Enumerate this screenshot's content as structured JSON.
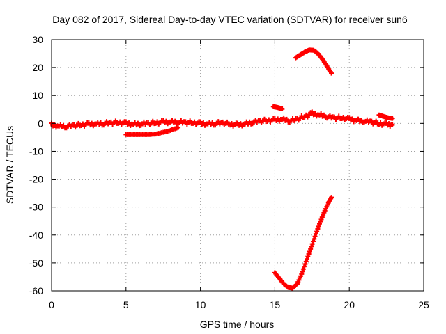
{
  "chart_data": {
    "type": "scatter",
    "title": "Day 082 of 2017, Sidereal Day-to-day VTEC variation (SDTVAR) for receiver sun6",
    "xlabel": "GPS time / hours",
    "ylabel": "SDTVAR / TECUs",
    "xlim": [
      0,
      25
    ],
    "ylim": [
      -60,
      30
    ],
    "xticks": [
      0,
      5,
      10,
      15,
      20,
      25
    ],
    "yticks": [
      30,
      20,
      10,
      0,
      -10,
      -20,
      -30,
      -40,
      -50,
      -60
    ],
    "grid": true,
    "legend": "none",
    "marker": "plus",
    "color": "#ff0000",
    "series": [
      {
        "x": [
          0.0,
          0.5,
          1.0,
          1.5,
          2.0,
          2.5,
          3.0,
          3.5,
          4.0,
          4.5,
          5.0,
          5.5,
          6.0,
          6.5,
          7.0,
          7.5,
          8.0,
          8.5,
          9.0,
          9.5,
          10.0,
          10.5,
          11.0,
          11.5,
          12.0,
          12.5,
          13.0,
          13.5,
          14.0,
          14.5,
          15.0,
          15.5,
          16.0,
          16.5,
          17.0,
          17.5,
          18.0,
          18.5,
          19.0,
          19.5,
          20.0,
          20.5,
          21.0,
          21.5,
          22.0,
          22.5,
          22.9
        ],
        "y": [
          -0.5,
          -1.0,
          -1.0,
          -0.8,
          -0.5,
          -0.3,
          -0.2,
          0.0,
          0.2,
          0.3,
          0.0,
          -0.3,
          -0.2,
          0.0,
          0.3,
          0.5,
          0.5,
          0.5,
          0.3,
          0.3,
          0.0,
          -0.2,
          0.0,
          0.2,
          -0.3,
          -0.5,
          -0.2,
          0.5,
          0.8,
          1.0,
          1.2,
          1.5,
          1.0,
          1.5,
          2.5,
          3.5,
          3.0,
          2.5,
          2.0,
          2.0,
          1.5,
          1.0,
          0.8,
          0.5,
          0.0,
          -0.3,
          -0.5
        ]
      },
      {
        "x": [
          5.0,
          5.5,
          6.0,
          6.5,
          7.0,
          7.5,
          8.0,
          8.5
        ],
        "y": [
          -4.0,
          -4.0,
          -4.0,
          -4.0,
          -3.8,
          -3.2,
          -2.5,
          -1.5
        ]
      },
      {
        "x": [
          14.9,
          15.1,
          15.3,
          15.5
        ],
        "y": [
          6.0,
          5.8,
          5.5,
          5.2
        ]
      },
      {
        "x": [
          16.4,
          16.7,
          17.0,
          17.3,
          17.6,
          17.9,
          18.2,
          18.5,
          18.8
        ],
        "y": [
          23.5,
          24.5,
          25.5,
          26.3,
          26.2,
          25.0,
          23.0,
          20.5,
          18.0
        ]
      },
      {
        "x": [
          15.0,
          15.3,
          15.6,
          15.9,
          16.2,
          16.5,
          16.8,
          17.1,
          17.4,
          17.7,
          18.0,
          18.3,
          18.6,
          18.8
        ],
        "y": [
          -53.5,
          -55.5,
          -57.5,
          -58.8,
          -59.0,
          -57.5,
          -54.0,
          -49.5,
          -45.0,
          -40.5,
          -36.0,
          -32.0,
          -28.5,
          -26.5
        ]
      },
      {
        "x": [
          22.0,
          22.3,
          22.6,
          22.9
        ],
        "y": [
          3.0,
          2.5,
          2.0,
          1.8
        ]
      }
    ]
  }
}
